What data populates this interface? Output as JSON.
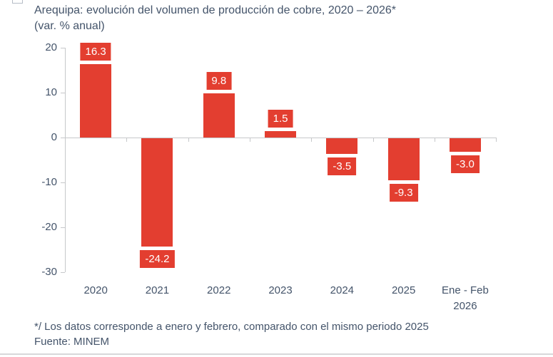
{
  "title": {
    "line1": "Arequipa: evolución del volumen de producción de cobre, 2020 – 2026*",
    "line2": "(var. % anual)"
  },
  "footnote": {
    "line1": "*/ Los datos corresponde a enero y febrero, comparado con el mismo periodo 2025",
    "line2": "Fuente: MINEM"
  },
  "colors": {
    "bar": "#e33e30",
    "text": "#44546a",
    "axis": "#c6c8ca",
    "value_label_text": "#ffffff",
    "divider": "#d7d8da"
  },
  "chart_data": {
    "type": "bar",
    "title": "Arequipa: evolución del volumen de producción de cobre, 2020 – 2026* (var. % anual)",
    "categories": [
      "2020",
      "2021",
      "2022",
      "2023",
      "2024",
      "2025",
      "Ene - Feb\n2026"
    ],
    "values": [
      16.3,
      -24.2,
      9.8,
      1.5,
      -3.5,
      -9.3,
      -3.0
    ],
    "data_labels": [
      "16.3",
      "-24.2",
      "9.8",
      "1.5",
      "-3.5",
      "-9.3",
      "-3.0"
    ],
    "xlabel": "",
    "ylabel": "",
    "yticks": [
      20,
      10,
      0,
      -10,
      -20,
      -30
    ],
    "ylim": [
      -30,
      20
    ],
    "grid": false,
    "legend": "none",
    "bar_color": "#e33e30"
  }
}
